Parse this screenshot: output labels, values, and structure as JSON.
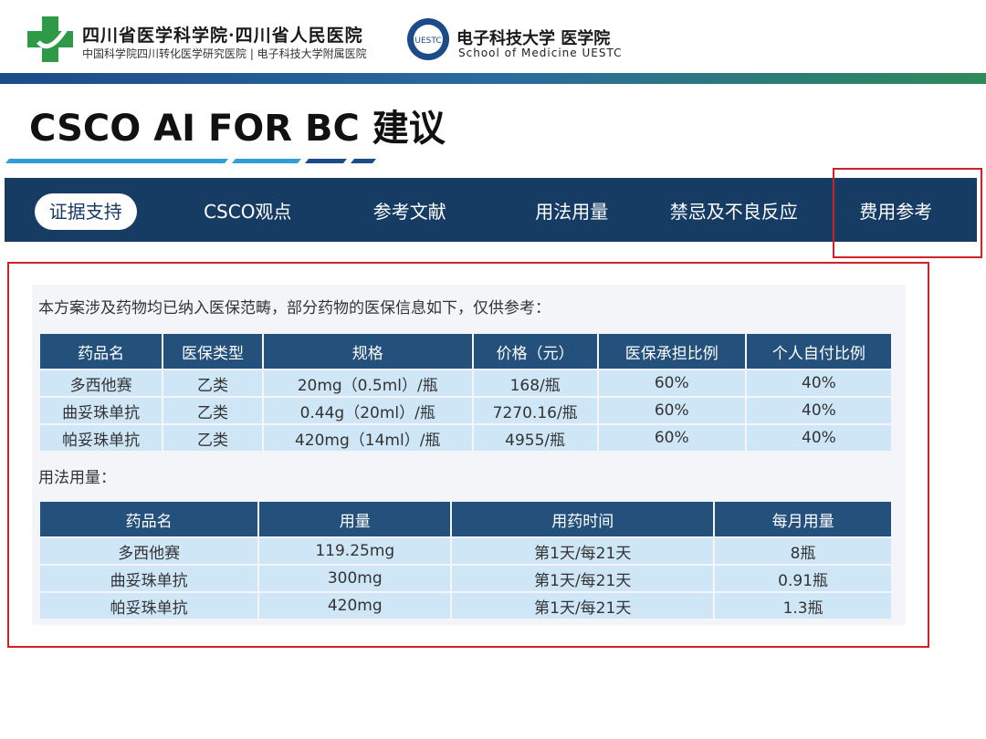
{
  "header": {
    "org1": "四川省医学科学院·四川省人民医院",
    "org1_sub": "中国科学院四川转化医学研究医院 | 电子科技大学附属医院",
    "org2": "电子科技大学 医学院",
    "org2_sub": "School of Medicine UESTC",
    "badge": "UESTC"
  },
  "title": "CSCO AI FOR BC 建议",
  "tabs": [
    "证据支持",
    "CSCO观点",
    "参考文献",
    "用法用量",
    "禁忌及不良反应",
    "费用参考"
  ],
  "intro": "本方案涉及药物均已纳入医保范畴，部分药物的医保信息如下，仅供参考：",
  "table1": {
    "headers": [
      "药品名",
      "医保类型",
      "规格",
      "价格（元）",
      "医保承担比例",
      "个人自付比例"
    ],
    "rows": [
      [
        "多西他赛",
        "乙类",
        "20mg（0.5ml）/瓶",
        "168/瓶",
        "60%",
        "40%"
      ],
      [
        "曲妥珠单抗",
        "乙类",
        "0.44g（20ml）/瓶",
        "7270.16/瓶",
        "60%",
        "40%"
      ],
      [
        "帕妥珠单抗",
        "乙类",
        "420mg（14ml）/瓶",
        "4955/瓶",
        "60%",
        "40%"
      ]
    ]
  },
  "section2": "用法用量：",
  "table2": {
    "headers": [
      "药品名",
      "用量",
      "用药时间",
      "每月用量"
    ],
    "rows": [
      [
        "多西他赛",
        "119.25mg",
        "第1天/每21天",
        "8瓶"
      ],
      [
        "曲妥珠单抗",
        "300mg",
        "第1天/每21天",
        "0.91瓶"
      ],
      [
        "帕妥珠单抗",
        "420mg",
        "第1天/每21天",
        "1.3瓶"
      ]
    ]
  }
}
